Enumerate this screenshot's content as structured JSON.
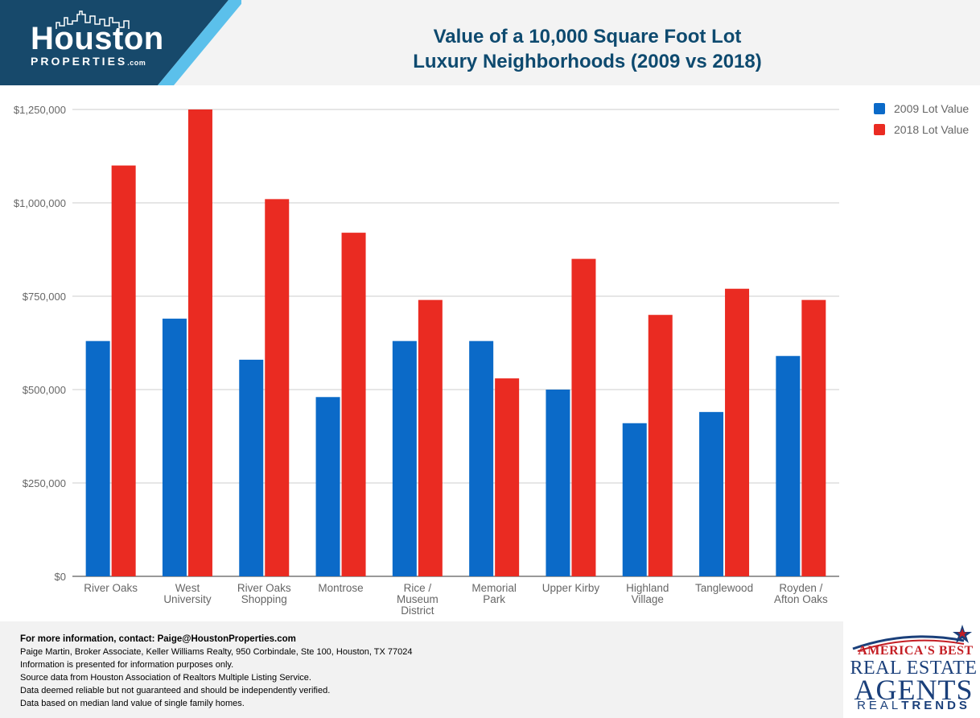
{
  "header": {
    "logo_main": "Houston",
    "logo_sub": "PROPERTIES",
    "logo_dotcom": ".com",
    "title_line1": "Value of a 10,000 Square Foot Lot",
    "title_line2": "Luxury Neighborhoods (2009 vs 2018)"
  },
  "colors": {
    "header_blue": "#0e4a6f",
    "logo_bg": "#17496b",
    "accent_light": "#5bc0eb",
    "series_2009": "#0b6ac8",
    "series_2018": "#ea2b22",
    "grid": "#cccccc",
    "tick_text": "#666666"
  },
  "chart_data": {
    "type": "bar",
    "title": "Value of a 10,000 Square Foot Lot Luxury Neighborhoods (2009 vs 2018)",
    "categories": [
      [
        "River Oaks"
      ],
      [
        "West",
        "University"
      ],
      [
        "River Oaks",
        "Shopping"
      ],
      [
        "Montrose"
      ],
      [
        "Rice /",
        "Museum",
        "District"
      ],
      [
        "Memorial",
        "Park"
      ],
      [
        "Upper Kirby"
      ],
      [
        "Highland",
        "Village"
      ],
      [
        "Tanglewood"
      ],
      [
        "Royden /",
        "Afton Oaks"
      ]
    ],
    "series": [
      {
        "name": "2009 Lot Value",
        "values": [
          630000,
          690000,
          580000,
          480000,
          630000,
          630000,
          500000,
          410000,
          440000,
          590000
        ]
      },
      {
        "name": "2018 Lot Value",
        "values": [
          1100000,
          1250000,
          1010000,
          920000,
          740000,
          530000,
          850000,
          700000,
          770000,
          740000
        ]
      }
    ],
    "ylim": [
      0,
      1250000
    ],
    "yticks": [
      0,
      250000,
      500000,
      750000,
      1000000,
      1250000
    ],
    "ytick_labels": [
      "$0",
      "$250,000",
      "$500,000",
      "$750,000",
      "$1,000,000",
      "$1,250,000"
    ],
    "grid": true,
    "legend_position": "top-right"
  },
  "footer": {
    "contact": "For more information, contact: Paige@HoustonProperties.com",
    "lines": [
      "Paige Martin, Broker Associate, Keller Williams Realty, 950 Corbindale, Ste 100, Houston, TX 77024",
      "Information is presented for information purposes only.",
      "Source data from Houston Association of Realtors Multiple Listing Service.",
      "Data deemed reliable but not guaranteed and should be independently verified.",
      "Data based on median land value of single family homes."
    ]
  },
  "badge": {
    "line1": "AMERICA'S BEST",
    "line2": "REAL ESTATE",
    "line3": "AGENTS",
    "line4_a": "REAL",
    "line4_b": "TRENDS"
  }
}
